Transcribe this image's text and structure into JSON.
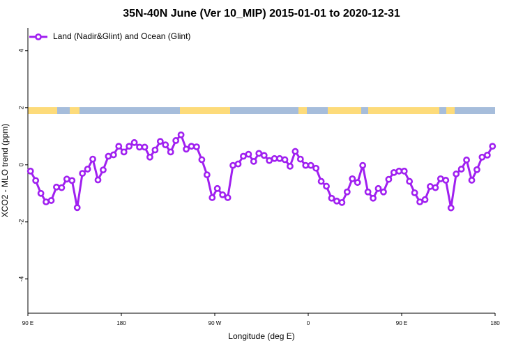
{
  "chart_data": {
    "type": "line",
    "title": "35N-40N June (Ver 10_MIP)   2015-01-01 to 2020-12-31",
    "x_label": "Longitude (deg E)",
    "y_label": "XCO2 - MLO trend (ppm)",
    "xlim": [
      90,
      540
    ],
    "ylim": [
      -5.2,
      4.8
    ],
    "xticks": [
      {
        "value": 90,
        "label": "90 E"
      },
      {
        "value": 180,
        "label": "180"
      },
      {
        "value": 270,
        "label": "90 W"
      },
      {
        "value": 360,
        "label": "0"
      },
      {
        "value": 450,
        "label": "90 E"
      },
      {
        "value": 540,
        "label": "180"
      }
    ],
    "yticks": [
      -4,
      -2,
      0,
      2,
      4
    ],
    "legend": "top-left",
    "x": [
      92.5,
      97.5,
      102.5,
      107.5,
      112.5,
      117.5,
      122.5,
      127.5,
      132.5,
      137.5,
      142.5,
      147.5,
      152.5,
      157.5,
      162.5,
      167.5,
      172.5,
      177.5,
      182.5,
      187.5,
      192.5,
      197.5,
      202.5,
      207.5,
      212.5,
      217.5,
      222.5,
      227.5,
      232.5,
      237.5,
      242.5,
      247.5,
      252.5,
      257.5,
      262.5,
      267.5,
      272.5,
      277.5,
      282.5,
      287.5,
      292.5,
      297.5,
      302.5,
      307.5,
      312.5,
      317.5,
      322.5,
      327.5,
      332.5,
      337.5,
      342.5,
      347.5,
      352.5,
      357.5,
      362.5,
      367.5,
      372.5,
      377.5,
      382.5,
      387.5,
      392.5,
      397.5,
      402.5,
      407.5,
      412.5,
      417.5,
      422.5,
      427.5,
      432.5,
      437.5,
      442.5,
      447.5,
      452.5,
      457.5,
      462.5,
      467.5,
      472.5,
      477.5,
      482.5,
      487.5,
      492.5,
      497.5,
      502.5,
      507.5,
      512.5,
      517.5,
      522.5,
      527.5,
      532.5,
      537.5
    ],
    "series": [
      {
        "name": "Land (Nadir&Glint) and Ocean (Glint)",
        "color": "#a020f0",
        "values": [
          -0.22,
          -0.55,
          -1.0,
          -1.3,
          -1.25,
          -0.78,
          -0.8,
          -0.5,
          -0.55,
          -1.5,
          -0.3,
          -0.15,
          0.2,
          -0.53,
          -0.18,
          0.3,
          0.35,
          0.65,
          0.45,
          0.65,
          0.78,
          0.62,
          0.62,
          0.27,
          0.52,
          0.82,
          0.7,
          0.45,
          0.85,
          1.05,
          0.55,
          0.65,
          0.63,
          0.18,
          -0.35,
          -1.15,
          -0.83,
          -1.05,
          -1.15,
          -0.02,
          0.03,
          0.3,
          0.37,
          0.12,
          0.4,
          0.33,
          0.15,
          0.22,
          0.22,
          0.18,
          -0.05,
          0.47,
          0.2,
          -0.02,
          -0.02,
          -0.12,
          -0.58,
          -0.75,
          -1.17,
          -1.27,
          -1.32,
          -0.95,
          -0.49,
          -0.62,
          -0.02,
          -0.95,
          -1.17,
          -0.83,
          -0.95,
          -0.51,
          -0.27,
          -0.22,
          -0.22,
          -0.58,
          -0.98,
          -1.3,
          -1.22,
          -0.76,
          -0.8,
          -0.49,
          -0.54,
          -1.51,
          -0.32,
          -0.15,
          0.17,
          -0.54,
          -0.17,
          0.27,
          0.34,
          0.65
        ]
      }
    ]
  }
}
